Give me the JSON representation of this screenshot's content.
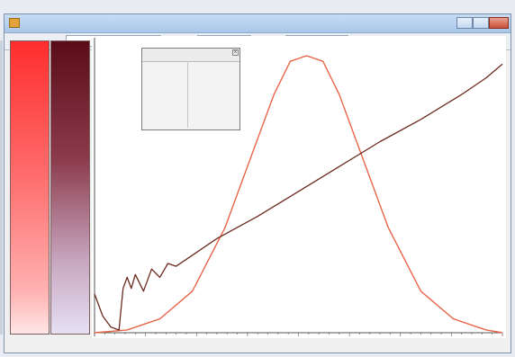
{
  "window": {
    "title": "",
    "min_label": "",
    "max_label": "",
    "close_label": ""
  },
  "toolbar": {
    "field1_label": "",
    "field1_value": "",
    "field2_label": "",
    "field2_value": "",
    "field3_label": "",
    "field3_value": ""
  },
  "colorbars": {
    "red_ticks": [
      "",
      "",
      "",
      "",
      "",
      "",
      "",
      "",
      "",
      "",
      "",
      "",
      ""
    ],
    "maroon_ticks": [
      "",
      "",
      "",
      "",
      "",
      "",
      "",
      "",
      "",
      "",
      "",
      "",
      ""
    ],
    "red_label": "",
    "maroon_label": ""
  },
  "stats": {
    "header": "",
    "rows": [
      {
        "key": "",
        "value": ""
      },
      {
        "key": "",
        "value": ""
      },
      {
        "key": "",
        "value": ""
      },
      {
        "key": "",
        "value": ""
      },
      {
        "key": "",
        "value": ""
      },
      {
        "key": "",
        "value": ""
      }
    ]
  },
  "chart_data": {
    "type": "line",
    "title": "",
    "xlabel": "",
    "ylabel": "",
    "x_ticks": [
      "",
      "",
      ""
    ],
    "grid": false,
    "colors": {
      "bell_curve": "#e8654a",
      "trend_line": "#6b2a1f",
      "axis": "#555555"
    },
    "series": [
      {
        "color": "#e8654a",
        "points": [
          [
            0.0,
            0.0
          ],
          [
            0.08,
            0.01
          ],
          [
            0.16,
            0.05
          ],
          [
            0.24,
            0.15
          ],
          [
            0.32,
            0.38
          ],
          [
            0.38,
            0.62
          ],
          [
            0.44,
            0.86
          ],
          [
            0.48,
            0.98
          ],
          [
            0.52,
            1.0
          ],
          [
            0.56,
            0.98
          ],
          [
            0.6,
            0.86
          ],
          [
            0.66,
            0.62
          ],
          [
            0.72,
            0.38
          ],
          [
            0.8,
            0.15
          ],
          [
            0.88,
            0.05
          ],
          [
            0.96,
            0.01
          ],
          [
            1.0,
            0.0
          ]
        ]
      },
      {
        "color": "#6b2a1f",
        "points": [
          [
            0.0,
            0.14
          ],
          [
            0.02,
            0.06
          ],
          [
            0.04,
            0.02
          ],
          [
            0.06,
            0.01
          ],
          [
            0.07,
            0.16
          ],
          [
            0.08,
            0.2
          ],
          [
            0.09,
            0.16
          ],
          [
            0.1,
            0.21
          ],
          [
            0.12,
            0.15
          ],
          [
            0.14,
            0.23
          ],
          [
            0.16,
            0.2
          ],
          [
            0.18,
            0.25
          ],
          [
            0.2,
            0.24
          ],
          [
            0.24,
            0.28
          ],
          [
            0.3,
            0.34
          ],
          [
            0.4,
            0.42
          ],
          [
            0.5,
            0.51
          ],
          [
            0.6,
            0.6
          ],
          [
            0.7,
            0.69
          ],
          [
            0.8,
            0.77
          ],
          [
            0.9,
            0.86
          ],
          [
            0.96,
            0.92
          ],
          [
            1.0,
            0.97
          ]
        ]
      }
    ]
  }
}
